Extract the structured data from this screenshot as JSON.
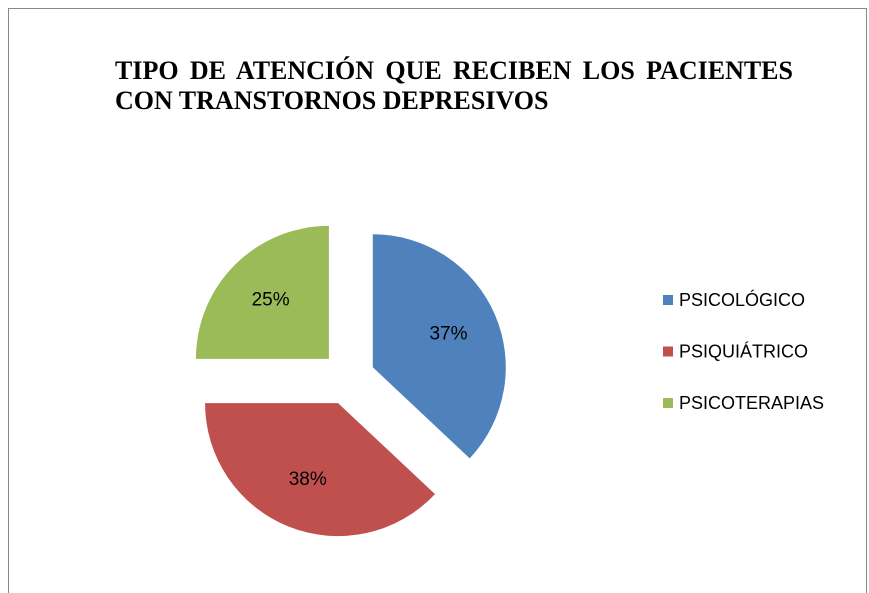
{
  "chart_data": {
    "type": "pie",
    "title": "TIPO DE ATENCIÓN QUE RECIBEN LOS PACIENTES CON TRANSTORNOS DEPRESIVOS",
    "categories": [
      "PSICOLÓGICO",
      "PSIQUIÁTRICO",
      "PSICOTERAPIAS"
    ],
    "values": [
      37,
      38,
      25
    ],
    "value_labels": [
      "37%",
      "38%",
      "25%"
    ],
    "colors": [
      "#4f81bd",
      "#c0504d",
      "#9bbb59"
    ],
    "legend": "right"
  }
}
